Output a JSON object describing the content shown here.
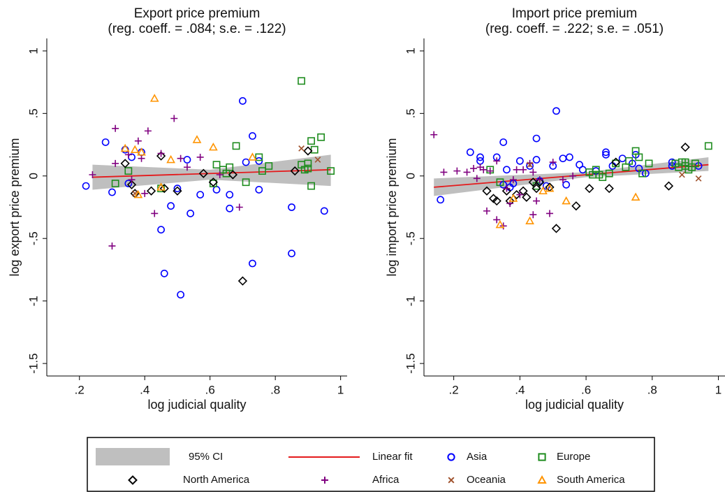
{
  "chart_data": [
    {
      "type": "scatter",
      "title": "Export price premium",
      "subtitle": "(reg. coeff. = .084; s.e. = .122)",
      "xlabel": "log judicial quality",
      "ylabel": "log export price premium",
      "xlim": [
        0.1,
        1.02
      ],
      "ylim": [
        -1.6,
        1.1
      ],
      "xticks": [
        {
          "value": 0.2,
          "label": ".2"
        },
        {
          "value": 0.4,
          "label": ".4"
        },
        {
          "value": 0.6,
          "label": ".6"
        },
        {
          "value": 0.8,
          "label": ".8"
        },
        1
      ],
      "yticks": [
        {
          "value": -1.5,
          "label": "-1.5"
        },
        -1,
        {
          "value": -0.5,
          "label": "-.5"
        },
        0,
        {
          "value": 0.5,
          "label": ".5"
        },
        1
      ],
      "ci": {
        "name": "95% CI",
        "color": "#bfbfbf",
        "x": [
          0.24,
          0.6,
          0.97
        ],
        "lower": [
          -0.11,
          -0.03,
          -0.08
        ],
        "upper": [
          0.09,
          0.05,
          0.17
        ]
      },
      "fit": {
        "name": "Linear fit",
        "color": "#e41a1c",
        "x": [
          0.24,
          0.97
        ],
        "y": [
          -0.01,
          0.05
        ]
      },
      "series": [
        {
          "name": "Asia",
          "color": "#0000ff",
          "marker": "circle",
          "x": [
            0.22,
            0.28,
            0.3,
            0.34,
            0.36,
            0.39,
            0.45,
            0.46,
            0.48,
            0.5,
            0.51,
            0.53,
            0.54,
            0.57,
            0.62,
            0.66,
            0.66,
            0.7,
            0.71,
            0.73,
            0.73,
            0.75,
            0.75,
            0.85,
            0.85,
            0.95,
            0.35
          ],
          "values": [
            -0.08,
            0.27,
            -0.13,
            0.21,
            0.15,
            0.19,
            -0.43,
            -0.78,
            -0.24,
            -0.1,
            -0.95,
            0.13,
            -0.3,
            -0.15,
            -0.11,
            -0.26,
            -0.15,
            0.6,
            0.11,
            0.32,
            -0.7,
            -0.11,
            0.12,
            -0.25,
            -0.62,
            -0.28,
            -0.06
          ]
        },
        {
          "name": "Europe",
          "color": "#1e8c1e",
          "marker": "square",
          "x": [
            0.31,
            0.35,
            0.45,
            0.61,
            0.62,
            0.64,
            0.65,
            0.66,
            0.68,
            0.71,
            0.75,
            0.76,
            0.78,
            0.88,
            0.88,
            0.89,
            0.9,
            0.91,
            0.91,
            0.92,
            0.94,
            0.97,
            0.9
          ],
          "values": [
            -0.06,
            0.04,
            -0.1,
            -0.06,
            0.09,
            0.05,
            0.02,
            0.07,
            0.24,
            -0.05,
            0.15,
            0.04,
            0.08,
            0.76,
            0.09,
            0.05,
            0.1,
            0.28,
            -0.08,
            0.21,
            0.31,
            0.04,
            0.06
          ]
        },
        {
          "name": "North America",
          "color": "#000000",
          "marker": "diamond",
          "x": [
            0.34,
            0.36,
            0.37,
            0.42,
            0.45,
            0.46,
            0.5,
            0.58,
            0.61,
            0.67,
            0.7,
            0.86,
            0.9
          ],
          "values": [
            0.1,
            -0.07,
            -0.14,
            -0.12,
            0.16,
            -0.1,
            -0.12,
            0.02,
            -0.05,
            0.01,
            -0.84,
            0.04,
            0.2
          ]
        },
        {
          "name": "Africa",
          "color": "#800080",
          "marker": "plus",
          "x": [
            0.24,
            0.3,
            0.31,
            0.31,
            0.35,
            0.38,
            0.39,
            0.4,
            0.41,
            0.43,
            0.45,
            0.49,
            0.51,
            0.53,
            0.57,
            0.63,
            0.69,
            0.36
          ],
          "values": [
            0.01,
            -0.56,
            0.38,
            0.1,
            0.17,
            0.28,
            0.14,
            -0.14,
            0.36,
            -0.3,
            0.18,
            0.46,
            0.14,
            0.07,
            0.15,
            0.01,
            -0.25,
            -0.03
          ]
        },
        {
          "name": "Oceania",
          "color": "#a0522d",
          "marker": "x",
          "x": [
            0.88,
            0.93,
            0.37
          ],
          "values": [
            0.22,
            0.13,
            -0.14
          ]
        },
        {
          "name": "South America",
          "color": "#ff9400",
          "marker": "triangle",
          "x": [
            0.34,
            0.37,
            0.38,
            0.39,
            0.43,
            0.45,
            0.48,
            0.56,
            0.61,
            0.73
          ],
          "values": [
            0.22,
            0.21,
            -0.15,
            0.19,
            0.62,
            -0.09,
            0.13,
            0.29,
            0.23,
            0.15
          ]
        }
      ]
    },
    {
      "type": "scatter",
      "title": "Import price premium",
      "subtitle": "(reg. coeff. = .222; s.e. = .051)",
      "xlabel": "log judicial quality",
      "ylabel": "log import price premium",
      "xlim": [
        0.11,
        1.02
      ],
      "ylim": [
        -1.6,
        1.1
      ],
      "xticks": [
        {
          "value": 0.2,
          "label": ".2"
        },
        {
          "value": 0.4,
          "label": ".4"
        },
        {
          "value": 0.6,
          "label": ".6"
        },
        {
          "value": 0.8,
          "label": ".8"
        },
        1
      ],
      "yticks": [
        {
          "value": -1.5,
          "label": "-1.5"
        },
        -1,
        {
          "value": -0.5,
          "label": "-.5"
        },
        0,
        {
          "value": 0.5,
          "label": ".5"
        },
        1
      ],
      "ci": {
        "name": "95% CI",
        "color": "#bfbfbf",
        "x": [
          0.14,
          0.6,
          0.97
        ],
        "lower": [
          -0.16,
          -0.01,
          0.04
        ],
        "upper": [
          -0.02,
          0.03,
          0.15
        ]
      },
      "fit": {
        "name": "Linear fit",
        "color": "#e41a1c",
        "x": [
          0.14,
          0.97
        ],
        "y": [
          -0.09,
          0.09
        ]
      },
      "series": [
        {
          "name": "Asia",
          "color": "#0000ff",
          "marker": "circle",
          "x": [
            0.16,
            0.25,
            0.28,
            0.28,
            0.33,
            0.35,
            0.35,
            0.36,
            0.37,
            0.38,
            0.4,
            0.43,
            0.45,
            0.45,
            0.46,
            0.48,
            0.5,
            0.51,
            0.54,
            0.55,
            0.58,
            0.59,
            0.63,
            0.66,
            0.66,
            0.68,
            0.71,
            0.74,
            0.75,
            0.76,
            0.78,
            0.86,
            0.86,
            0.94,
            0.53
          ],
          "values": [
            -0.19,
            0.19,
            0.12,
            0.15,
            0.15,
            0.27,
            -0.07,
            0.05,
            -0.09,
            -0.06,
            0.12,
            0.08,
            0.13,
            0.3,
            -0.04,
            -0.08,
            0.08,
            0.52,
            -0.07,
            0.15,
            0.09,
            0.05,
            0.04,
            0.19,
            0.17,
            0.08,
            0.14,
            0.1,
            0.17,
            0.06,
            0.02,
            0.08,
            0.11,
            0.08,
            0.14
          ]
        },
        {
          "name": "Europe",
          "color": "#1e8c1e",
          "marker": "square",
          "x": [
            0.31,
            0.34,
            0.45,
            0.61,
            0.62,
            0.63,
            0.64,
            0.65,
            0.67,
            0.69,
            0.72,
            0.73,
            0.75,
            0.76,
            0.77,
            0.79,
            0.87,
            0.88,
            0.89,
            0.9,
            0.91,
            0.92,
            0.93,
            0.97,
            0.9
          ],
          "values": [
            0.05,
            -0.05,
            -0.08,
            0.03,
            0.01,
            0.05,
            0.01,
            -0.01,
            0.02,
            0.1,
            0.07,
            0.12,
            0.2,
            0.15,
            0.02,
            0.1,
            0.1,
            0.07,
            0.11,
            0.08,
            0.05,
            0.07,
            0.1,
            0.24,
            0.11
          ]
        },
        {
          "name": "North America",
          "color": "#000000",
          "marker": "diamond",
          "x": [
            0.3,
            0.32,
            0.33,
            0.36,
            0.37,
            0.39,
            0.41,
            0.42,
            0.45,
            0.46,
            0.49,
            0.51,
            0.57,
            0.61,
            0.67,
            0.69,
            0.85,
            0.9,
            0.44
          ],
          "values": [
            -0.12,
            -0.18,
            -0.2,
            -0.12,
            -0.2,
            -0.15,
            -0.12,
            -0.17,
            -0.1,
            -0.05,
            -0.09,
            -0.42,
            -0.24,
            -0.1,
            -0.1,
            0.11,
            -0.08,
            0.23,
            -0.05
          ]
        },
        {
          "name": "Africa",
          "color": "#800080",
          "marker": "plus",
          "x": [
            0.14,
            0.17,
            0.21,
            0.24,
            0.26,
            0.27,
            0.28,
            0.3,
            0.31,
            0.33,
            0.33,
            0.35,
            0.36,
            0.37,
            0.38,
            0.4,
            0.41,
            0.43,
            0.44,
            0.44,
            0.45,
            0.46,
            0.49,
            0.5,
            0.53,
            0.56,
            0.29,
            0.39
          ],
          "values": [
            0.33,
            0.03,
            0.04,
            0.03,
            0.06,
            -0.02,
            0.07,
            -0.28,
            0.04,
            -0.35,
            0.12,
            -0.4,
            -0.1,
            -0.22,
            -0.03,
            -0.15,
            0.05,
            0.1,
            -0.31,
            0.03,
            -0.2,
            -0.03,
            -0.3,
            0.11,
            -0.03,
            0.0,
            0.05,
            0.05
          ]
        },
        {
          "name": "Oceania",
          "color": "#a0522d",
          "marker": "x",
          "x": [
            0.43,
            0.89,
            0.94
          ],
          "values": [
            0.09,
            0.01,
            -0.02
          ]
        },
        {
          "name": "South America",
          "color": "#ff9400",
          "marker": "triangle",
          "x": [
            0.34,
            0.38,
            0.43,
            0.47,
            0.54,
            0.75,
            0.49
          ],
          "values": [
            -0.39,
            -0.18,
            -0.36,
            -0.12,
            -0.2,
            -0.17,
            -0.1
          ]
        }
      ]
    }
  ]
}
